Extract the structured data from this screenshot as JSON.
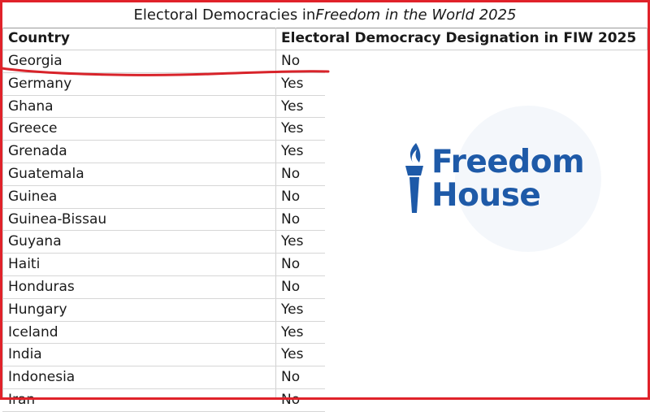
{
  "title": {
    "prefix": "Electoral Democracies in ",
    "italic": "Freedom in the World 2025"
  },
  "columns": {
    "country": "Country",
    "designation": "Electoral Democracy Designation in FIW 2025"
  },
  "rows": [
    {
      "country": "Georgia",
      "designation": "No"
    },
    {
      "country": "Germany",
      "designation": "Yes"
    },
    {
      "country": "Ghana",
      "designation": "Yes"
    },
    {
      "country": "Greece",
      "designation": "Yes"
    },
    {
      "country": "Grenada",
      "designation": "Yes"
    },
    {
      "country": "Guatemala",
      "designation": "No"
    },
    {
      "country": "Guinea",
      "designation": "No"
    },
    {
      "country": "Guinea-Bissau",
      "designation": "No"
    },
    {
      "country": "Guyana",
      "designation": "Yes"
    },
    {
      "country": "Haiti",
      "designation": "No"
    },
    {
      "country": "Honduras",
      "designation": "No"
    },
    {
      "country": "Hungary",
      "designation": "Yes"
    },
    {
      "country": "Iceland",
      "designation": "Yes"
    },
    {
      "country": "India",
      "designation": "Yes"
    },
    {
      "country": "Indonesia",
      "designation": "No"
    },
    {
      "country": "Iran",
      "designation": "No"
    }
  ],
  "logo": {
    "line1": "Freedom",
    "line2": "House",
    "icon": "torch-icon",
    "color": "#1e5aa8"
  },
  "annotation": {
    "color": "#d8232a",
    "highlighted_row": "Georgia"
  }
}
